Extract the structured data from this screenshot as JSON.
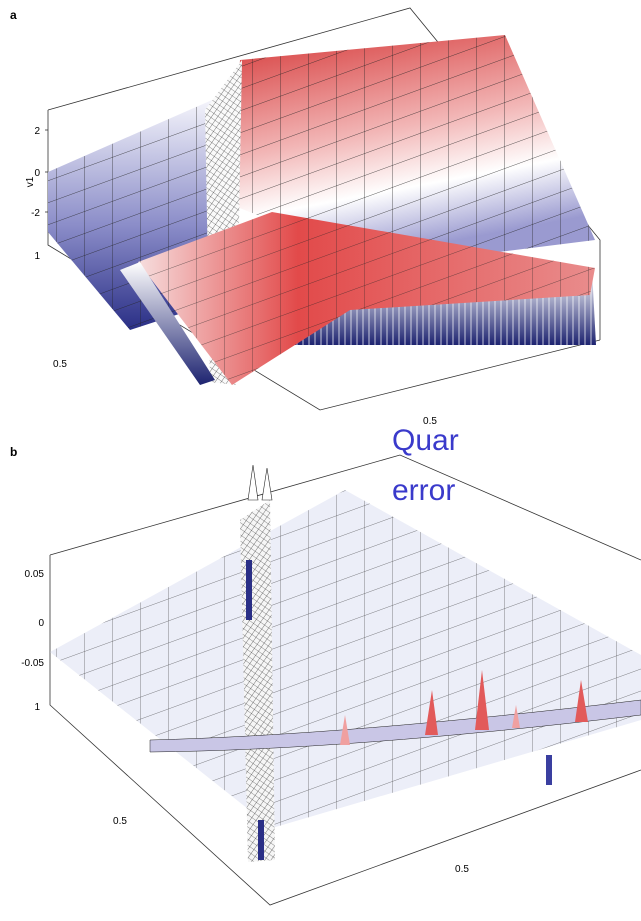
{
  "panels": [
    {
      "label": "a",
      "z_ticks": [
        "2",
        "0",
        "-2"
      ],
      "z_axis_label": "v1",
      "y_tick": "1",
      "left_tick": "0.5",
      "bottom_tick": "0.5"
    },
    {
      "label": "b",
      "z_ticks": [
        "0.05",
        "0",
        "-0.05"
      ],
      "y_tick": "1",
      "left_tick": "0.5",
      "bottom_tick": "0.5"
    }
  ],
  "overlay_text": [
    "Quar",
    "error"
  ]
}
